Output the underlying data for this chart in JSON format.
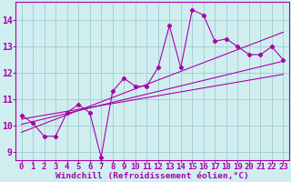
{
  "bg_color": "#d0eef0",
  "line_color": "#aa00aa",
  "grid_color": "#a0cccc",
  "xlabel": "Windchill (Refroidissement éolien,°C)",
  "xlabel_fontsize": 6.8,
  "tick_fontsize": 6.5,
  "xlim": [
    -0.5,
    23.5
  ],
  "ylim": [
    8.7,
    14.7
  ],
  "xticks": [
    0,
    1,
    2,
    3,
    4,
    5,
    6,
    7,
    8,
    9,
    10,
    11,
    12,
    13,
    14,
    15,
    16,
    17,
    18,
    19,
    20,
    21,
    22,
    23
  ],
  "yticks": [
    9,
    10,
    11,
    12,
    13,
    14
  ],
  "main_x": [
    0,
    1,
    2,
    3,
    4,
    5,
    6,
    7,
    8,
    9,
    10,
    11,
    12,
    13,
    14,
    15,
    16,
    17,
    18,
    19,
    20,
    21,
    22,
    23
  ],
  "main_y": [
    10.4,
    10.1,
    9.6,
    9.6,
    10.5,
    10.8,
    10.5,
    8.8,
    11.3,
    11.8,
    11.5,
    11.5,
    12.2,
    13.8,
    12.2,
    14.4,
    14.2,
    13.2,
    13.3,
    13.0,
    12.7,
    12.7,
    13.0,
    12.5
  ],
  "trend1_x": [
    0,
    23
  ],
  "trend1_y": [
    10.05,
    12.45
  ],
  "trend2_x": [
    0,
    23
  ],
  "trend2_y": [
    9.75,
    13.55
  ],
  "trend3_x": [
    0,
    23
  ],
  "trend3_y": [
    10.25,
    11.95
  ]
}
